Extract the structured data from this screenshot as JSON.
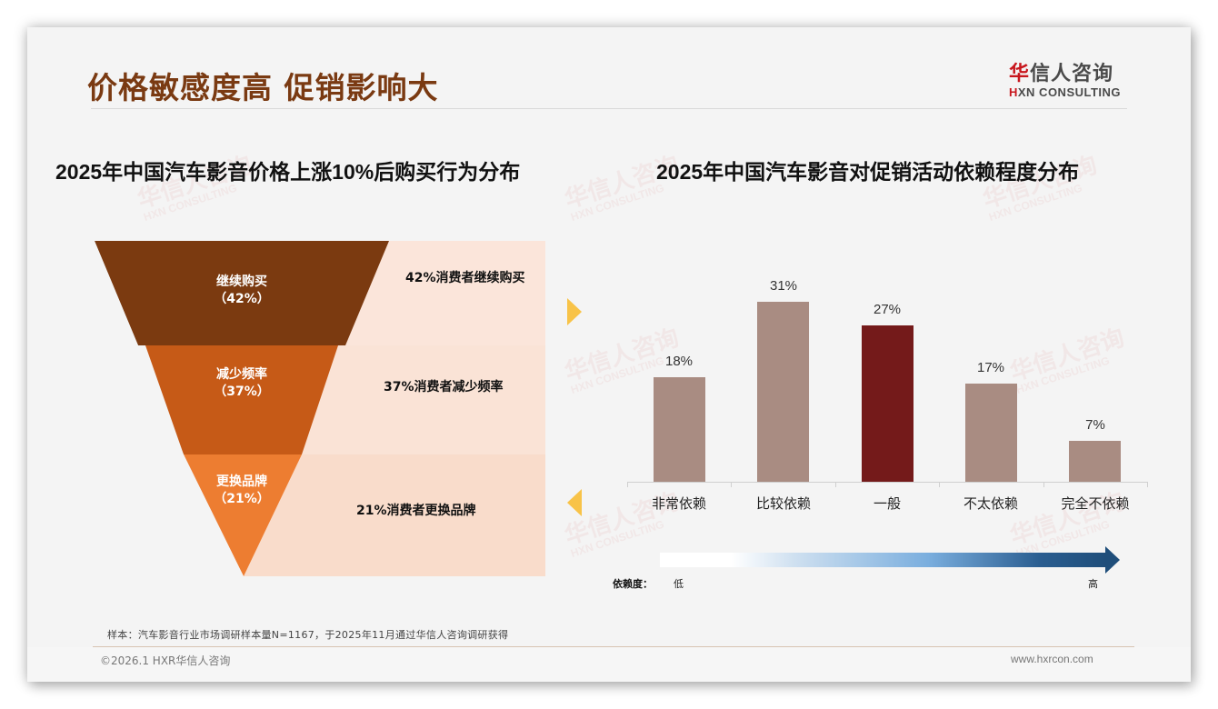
{
  "header": {
    "title": "价格敏感度高 促销影响大",
    "logo_cn_first": "华",
    "logo_cn_rest": "信人咨询",
    "logo_en_first": "H",
    "logo_en_rest": "XN CONSULTING"
  },
  "watermark": {
    "cn": "华信人咨询",
    "en": "HXN CONSULTING"
  },
  "left_chart": {
    "title": "2025年中国汽车影音价格上涨10%后购买行为分布",
    "segments": [
      {
        "name": "继续购买",
        "pct_label": "（42%）",
        "desc": "42%消费者继续购买",
        "color": "#7b3a10",
        "band_color": "#fbe5da"
      },
      {
        "name": "减少频率",
        "pct_label": "（37%）",
        "desc": "37%消费者减少频率",
        "color": "#c65a17",
        "band_color": "#fae3d6"
      },
      {
        "name": "更换品牌",
        "pct_label": "（21%）",
        "desc": "21%消费者更换品牌",
        "color": "#ed7d31",
        "band_color": "#f9dccb"
      }
    ]
  },
  "right_chart": {
    "title": "2025年中国汽车影音对促销活动依赖程度分布",
    "dependency_label": "依赖度：",
    "low_label": "低",
    "high_label": "高",
    "bar_color": "#a98c82",
    "highlight_color": "#741a1a",
    "arrow_color": "#f8c348"
  },
  "chart_data": [
    {
      "type": "funnel",
      "title": "2025年中国汽车影音价格上涨10%后购买行为分布",
      "categories": [
        "继续购买",
        "减少频率",
        "更换品牌"
      ],
      "values": [
        42,
        37,
        21
      ],
      "unit": "%",
      "annotations": [
        "42%消费者继续购买",
        "37%消费者减少频率",
        "21%消费者更换品牌"
      ]
    },
    {
      "type": "bar",
      "title": "2025年中国汽车影音对促销活动依赖程度分布",
      "categories": [
        "非常依赖",
        "比较依赖",
        "一般",
        "不太依赖",
        "完全不依赖"
      ],
      "values": [
        18,
        31,
        27,
        17,
        7
      ],
      "value_labels": [
        "18%",
        "31%",
        "27%",
        "17%",
        "7%"
      ],
      "highlight_index": 2,
      "xlabel": "",
      "ylabel": "",
      "ylim": [
        0,
        35
      ],
      "grid": false,
      "legend": "none",
      "annotations": [
        "依赖度：低 → 高"
      ]
    }
  ],
  "footer": {
    "source": "样本：汽车影音行业市场调研样本量N=1167，于2025年11月通过华信人咨询调研获得",
    "copyright": "©2026.1 HXR华信人咨询",
    "website": "www.hxrcon.com"
  }
}
